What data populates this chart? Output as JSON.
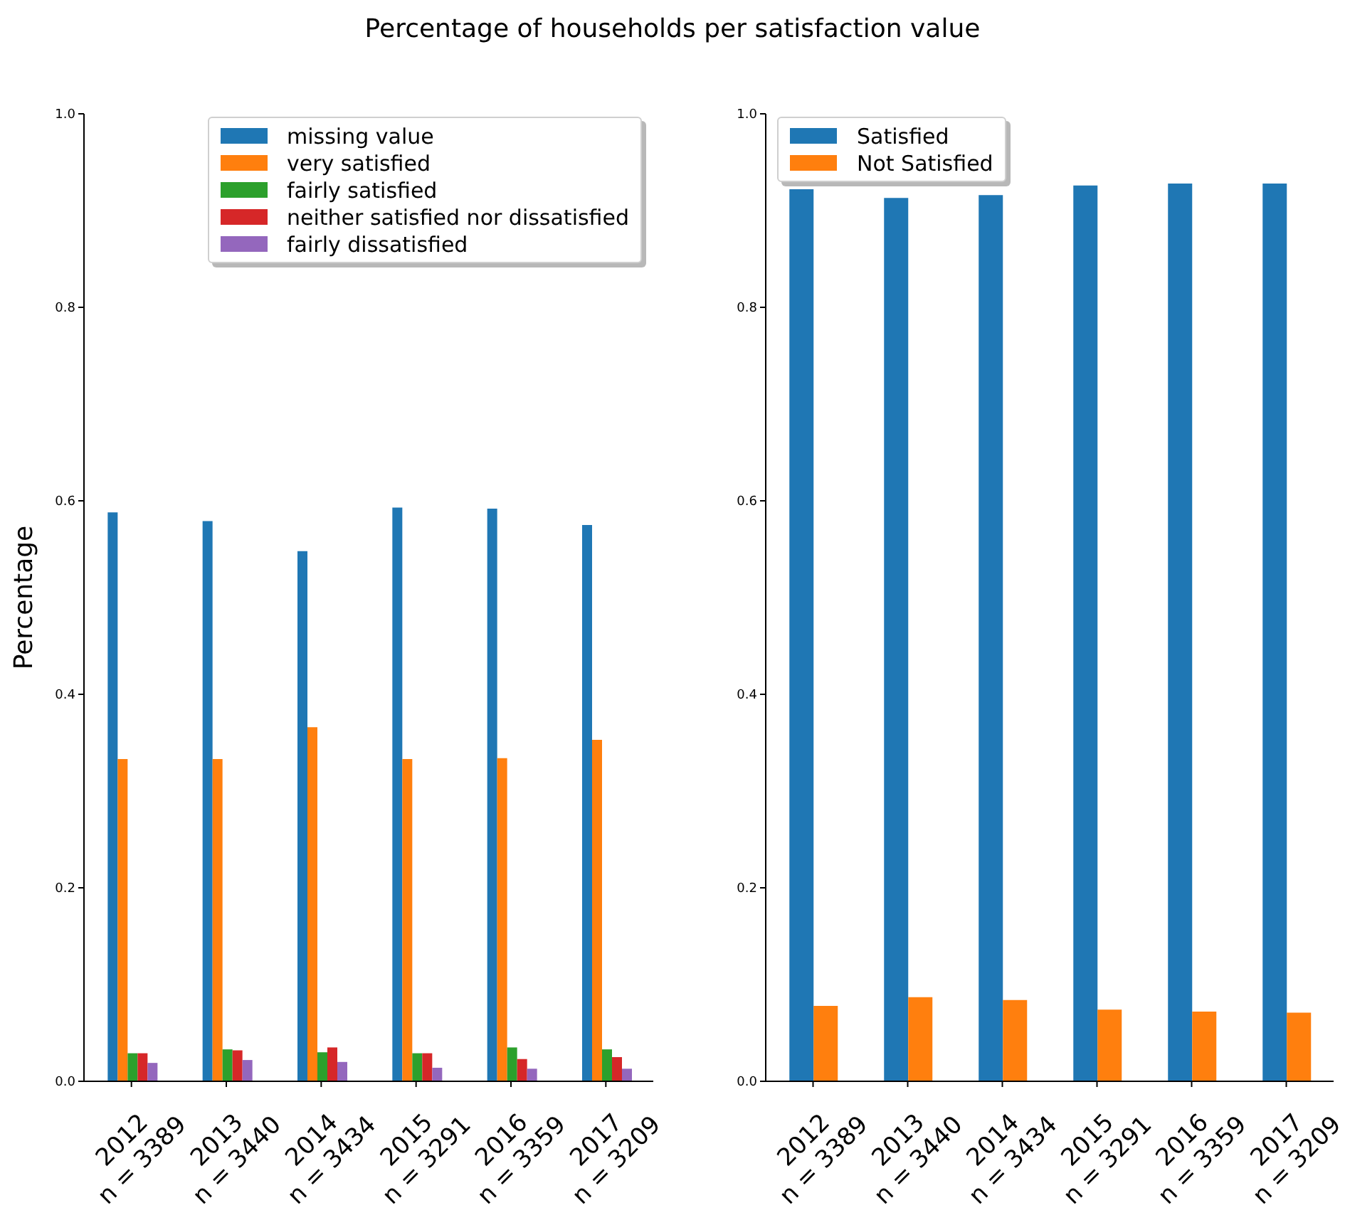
{
  "chart_data": [
    {
      "type": "bar",
      "title": "Percentage of households per satisfaction value",
      "ylabel": "Percentage",
      "categories": [
        "2012\nn = 3389",
        "2013\nn = 3440",
        "2014\nn = 3434",
        "2015\nn = 3291",
        "2016\nn = 3359",
        "2017\nn = 3209"
      ],
      "series": [
        {
          "name": "missing value",
          "color": "#1f77b4",
          "values": [
            0.588,
            0.579,
            0.548,
            0.593,
            0.592,
            0.575
          ]
        },
        {
          "name": "very satisfied",
          "color": "#ff7f0e",
          "values": [
            0.333,
            0.333,
            0.366,
            0.333,
            0.334,
            0.353
          ]
        },
        {
          "name": "fairly satisfied",
          "color": "#2ca02c",
          "values": [
            0.029,
            0.033,
            0.03,
            0.029,
            0.035,
            0.033
          ]
        },
        {
          "name": "neither satisfied nor dissatisfied",
          "color": "#d62728",
          "values": [
            0.029,
            0.032,
            0.035,
            0.029,
            0.023,
            0.025
          ]
        },
        {
          "name": "fairly dissatisfied",
          "color": "#9467bd",
          "values": [
            0.019,
            0.022,
            0.02,
            0.014,
            0.013,
            0.013
          ]
        }
      ],
      "ylim": [
        0,
        1
      ],
      "yticks": [
        {
          "value": 0,
          "label": "0.0"
        },
        {
          "value": 0.2,
          "label": "0.2"
        },
        {
          "value": 0.4,
          "label": "0.4"
        },
        {
          "value": 0.6,
          "label": "0.6"
        },
        {
          "value": 0.8,
          "label": "0.8"
        },
        {
          "value": 1,
          "label": "1.0"
        }
      ],
      "legend": "top right"
    },
    {
      "type": "bar",
      "categories": [
        "2012\nn = 3389",
        "2013\nn = 3440",
        "2014\nn = 3434",
        "2015\nn = 3291",
        "2016\nn = 3359",
        "2017\nn = 3209"
      ],
      "series": [
        {
          "name": "Satisfied",
          "color": "#1f77b4",
          "values": [
            0.922,
            0.913,
            0.916,
            0.926,
            0.928,
            0.928
          ]
        },
        {
          "name": "Not Satisfied",
          "color": "#ff7f0e",
          "values": [
            0.078,
            0.087,
            0.084,
            0.074,
            0.072,
            0.071
          ]
        }
      ],
      "ylim": [
        0,
        1
      ],
      "yticks": [
        {
          "value": 0,
          "label": "0.0"
        },
        {
          "value": 0.2,
          "label": "0.2"
        },
        {
          "value": 0.4,
          "label": "0.4"
        },
        {
          "value": 0.6,
          "label": "0.6"
        },
        {
          "value": 0.8,
          "label": "0.8"
        },
        {
          "value": 1,
          "label": "1.0"
        }
      ],
      "legend": "top left"
    }
  ]
}
